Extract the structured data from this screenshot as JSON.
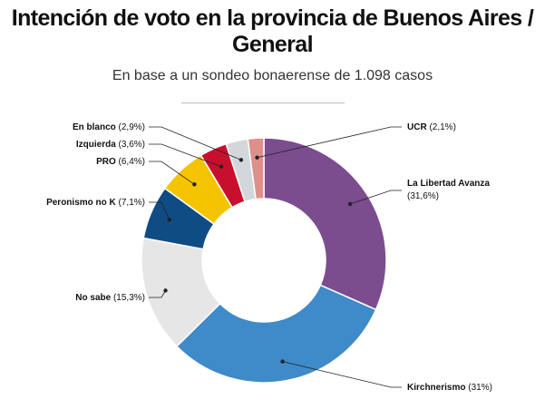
{
  "header": {
    "title": "Intención de voto en la provincia de Buenos Aires / General",
    "subtitle": "En base a un sondeo bonaerense de 1.098 casos"
  },
  "chart_data": {
    "type": "pie",
    "donut": true,
    "title": "Intención de voto en la provincia de Buenos Aires / General",
    "subtitle": "En base a un sondeo bonaerense de 1.098 casos",
    "slices": [
      {
        "name": "La Libertad Avanza",
        "value": 31.6,
        "label": "(31,6%)",
        "color": "#7b4d8f"
      },
      {
        "name": "Kirchnerismo",
        "value": 31.0,
        "label": "(31%)",
        "color": "#3f8ac9"
      },
      {
        "name": "No sabe",
        "value": 15.3,
        "label": "(15,3%)",
        "color": "#e6e6e6"
      },
      {
        "name": "Peronismo no K",
        "value": 7.1,
        "label": "(7,1%)",
        "color": "#0f4c84"
      },
      {
        "name": "PRO",
        "value": 6.4,
        "label": "(6,4%)",
        "color": "#f5c400"
      },
      {
        "name": "Izquierda",
        "value": 3.6,
        "label": "(3,6%)",
        "color": "#c8102e"
      },
      {
        "name": "En blanco",
        "value": 2.9,
        "label": "(2,9%)",
        "color": "#d3d6da"
      },
      {
        "name": "UCR",
        "value": 2.1,
        "label": "(2,1%)",
        "color": "#de8f8c"
      }
    ]
  }
}
